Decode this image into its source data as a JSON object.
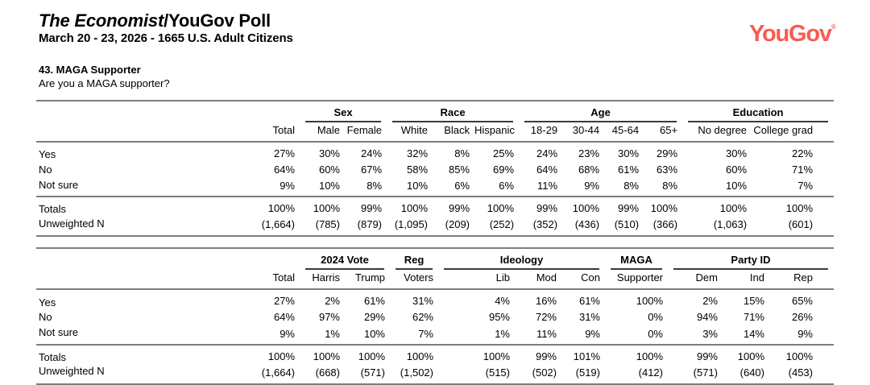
{
  "header": {
    "title_italic": "The Economist",
    "title_rest": "/YouGov Poll",
    "subtitle": "March 20 - 23, 2026 - 1665 U.S. Adult Citizens",
    "logo": "YouGov",
    "logo_mark": "®",
    "logo_color": "#fa5a50"
  },
  "question": {
    "number_title": "43. MAGA Supporter",
    "text": "Are you a MAGA supporter?"
  },
  "table1": {
    "groups": [
      {
        "label": "",
        "span": 1
      },
      {
        "label": "Sex",
        "span": 2
      },
      {
        "label": "Race",
        "span": 3
      },
      {
        "label": "Age",
        "span": 4
      },
      {
        "label": "Education",
        "span": 2
      }
    ],
    "columns": [
      "Total",
      "Male",
      "Female",
      "White",
      "Black",
      "Hispanic",
      "18-29",
      "30-44",
      "45-64",
      "65+",
      "No degree",
      "College grad"
    ],
    "rows": [
      {
        "label": "Yes",
        "values": [
          "27%",
          "30%",
          "24%",
          "32%",
          "8%",
          "25%",
          "24%",
          "23%",
          "30%",
          "29%",
          "30%",
          "22%"
        ]
      },
      {
        "label": "No",
        "values": [
          "64%",
          "60%",
          "67%",
          "58%",
          "85%",
          "69%",
          "64%",
          "68%",
          "61%",
          "63%",
          "60%",
          "71%"
        ]
      },
      {
        "label": "Not sure",
        "values": [
          "9%",
          "10%",
          "8%",
          "10%",
          "6%",
          "6%",
          "11%",
          "9%",
          "8%",
          "8%",
          "10%",
          "7%"
        ]
      }
    ],
    "summary_rows": [
      {
        "label": "Totals",
        "values": [
          "100%",
          "100%",
          "99%",
          "100%",
          "99%",
          "100%",
          "99%",
          "100%",
          "99%",
          "100%",
          "100%",
          "100%"
        ]
      },
      {
        "label": "Unweighted N",
        "values": [
          "(1,664)",
          "(785)",
          "(879)",
          "(1,095)",
          "(209)",
          "(252)",
          "(352)",
          "(436)",
          "(510)",
          "(366)",
          "(1,063)",
          "(601)"
        ]
      }
    ]
  },
  "table2": {
    "groups": [
      {
        "label": "",
        "span": 1
      },
      {
        "label": "2024 Vote",
        "span": 2
      },
      {
        "label": "Reg",
        "span": 1
      },
      {
        "label": "Ideology",
        "span": 3
      },
      {
        "label": "MAGA",
        "span": 1
      },
      {
        "label": "Party ID",
        "span": 3
      }
    ],
    "columns": [
      "Total",
      "Harris",
      "Trump",
      "Voters",
      "Lib",
      "Mod",
      "Con",
      "Supporter",
      "Dem",
      "Ind",
      "Rep"
    ],
    "rows": [
      {
        "label": "Yes",
        "values": [
          "27%",
          "2%",
          "61%",
          "31%",
          "4%",
          "16%",
          "61%",
          "100%",
          "2%",
          "15%",
          "65%"
        ]
      },
      {
        "label": "No",
        "values": [
          "64%",
          "97%",
          "29%",
          "62%",
          "95%",
          "72%",
          "31%",
          "0%",
          "94%",
          "71%",
          "26%"
        ]
      },
      {
        "label": "Not sure",
        "values": [
          "9%",
          "1%",
          "10%",
          "7%",
          "1%",
          "11%",
          "9%",
          "0%",
          "3%",
          "14%",
          "9%"
        ]
      }
    ],
    "summary_rows": [
      {
        "label": "Totals",
        "values": [
          "100%",
          "100%",
          "100%",
          "100%",
          "100%",
          "99%",
          "101%",
          "100%",
          "99%",
          "100%",
          "100%"
        ]
      },
      {
        "label": "Unweighted N",
        "values": [
          "(1,664)",
          "(668)",
          "(571)",
          "(1,502)",
          "(515)",
          "(502)",
          "(519)",
          "(412)",
          "(571)",
          "(640)",
          "(453)"
        ]
      }
    ]
  }
}
